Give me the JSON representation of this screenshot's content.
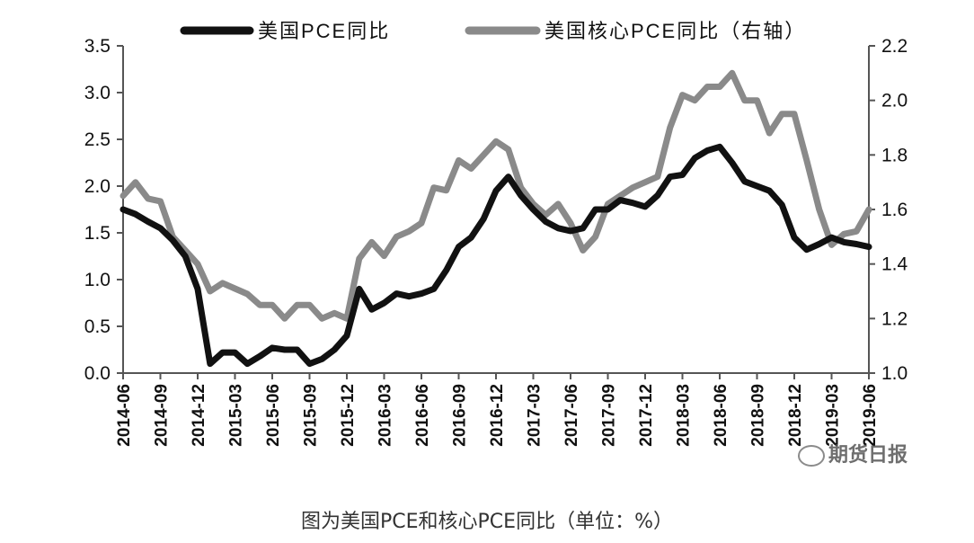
{
  "chart_data": {
    "type": "line",
    "title": "",
    "legend": [
      "美国PCE同比",
      "美国核心PCE同比（右轴）"
    ],
    "legend_placement": "top",
    "y_left": {
      "ticks": [
        "0.0",
        "0.5",
        "1.0",
        "1.5",
        "2.0",
        "2.5",
        "3.0",
        "3.5"
      ],
      "ylim": [
        0,
        3.5
      ]
    },
    "y_right": {
      "ticks": [
        "1.0",
        "1.2",
        "1.4",
        "1.6",
        "1.8",
        "2.0",
        "2.2"
      ],
      "ylim": [
        1.0,
        2.2
      ]
    },
    "x_ticks": [
      "2014-06",
      "2014-09",
      "2014-12",
      "2015-03",
      "2015-06",
      "2015-09",
      "2015-12",
      "2016-03",
      "2016-06",
      "2016-09",
      "2016-12",
      "2017-03",
      "2017-06",
      "2017-09",
      "2017-12",
      "2018-03",
      "2018-06",
      "2018-09",
      "2018-12",
      "2019-03",
      "2019-06"
    ],
    "x": [
      "2014-06",
      "2014-07",
      "2014-08",
      "2014-09",
      "2014-10",
      "2014-11",
      "2014-12",
      "2015-01",
      "2015-02",
      "2015-03",
      "2015-04",
      "2015-05",
      "2015-06",
      "2015-07",
      "2015-08",
      "2015-09",
      "2015-10",
      "2015-11",
      "2015-12",
      "2016-01",
      "2016-02",
      "2016-03",
      "2016-04",
      "2016-05",
      "2016-06",
      "2016-07",
      "2016-08",
      "2016-09",
      "2016-10",
      "2016-11",
      "2016-12",
      "2017-01",
      "2017-02",
      "2017-03",
      "2017-04",
      "2017-05",
      "2017-06",
      "2017-07",
      "2017-08",
      "2017-09",
      "2017-10",
      "2017-11",
      "2017-12",
      "2018-01",
      "2018-02",
      "2018-03",
      "2018-04",
      "2018-05",
      "2018-06",
      "2018-07",
      "2018-08",
      "2018-09",
      "2018-10",
      "2018-11",
      "2018-12",
      "2019-01",
      "2019-02",
      "2019-03",
      "2019-04",
      "2019-05",
      "2019-06"
    ],
    "series": [
      {
        "name": "美国PCE同比",
        "axis": "left",
        "color": "#111111",
        "values": [
          1.75,
          1.7,
          1.62,
          1.55,
          1.42,
          1.25,
          0.9,
          0.1,
          0.22,
          0.22,
          0.1,
          0.18,
          0.27,
          0.25,
          0.25,
          0.1,
          0.15,
          0.25,
          0.4,
          0.9,
          0.68,
          0.75,
          0.85,
          0.82,
          0.85,
          0.9,
          1.1,
          1.35,
          1.45,
          1.65,
          1.95,
          2.1,
          1.9,
          1.75,
          1.62,
          1.55,
          1.52,
          1.55,
          1.75,
          1.75,
          1.85,
          1.82,
          1.78,
          1.9,
          2.1,
          2.12,
          2.3,
          2.38,
          2.42,
          2.25,
          2.05,
          2.0,
          1.95,
          1.8,
          1.45,
          1.32,
          1.38,
          1.45,
          1.4,
          1.38,
          1.35
        ]
      },
      {
        "name": "美国核心PCE同比（右轴）",
        "axis": "right",
        "color": "#8a8a8a",
        "values": [
          1.65,
          1.7,
          1.64,
          1.63,
          1.5,
          1.45,
          1.4,
          1.3,
          1.33,
          1.31,
          1.29,
          1.25,
          1.25,
          1.2,
          1.25,
          1.25,
          1.2,
          1.22,
          1.2,
          1.42,
          1.48,
          1.43,
          1.5,
          1.52,
          1.55,
          1.68,
          1.67,
          1.78,
          1.75,
          1.8,
          1.85,
          1.82,
          1.68,
          1.62,
          1.58,
          1.62,
          1.55,
          1.45,
          1.5,
          1.62,
          1.65,
          1.68,
          1.7,
          1.72,
          1.9,
          2.02,
          2.0,
          2.05,
          2.05,
          2.1,
          2.0,
          2.0,
          1.88,
          1.95,
          1.95,
          1.78,
          1.6,
          1.47,
          1.51,
          1.52,
          1.6
        ]
      }
    ],
    "watermark": "期货日报"
  },
  "caption": "图为美国PCE和核心PCE同比（单位：%）"
}
